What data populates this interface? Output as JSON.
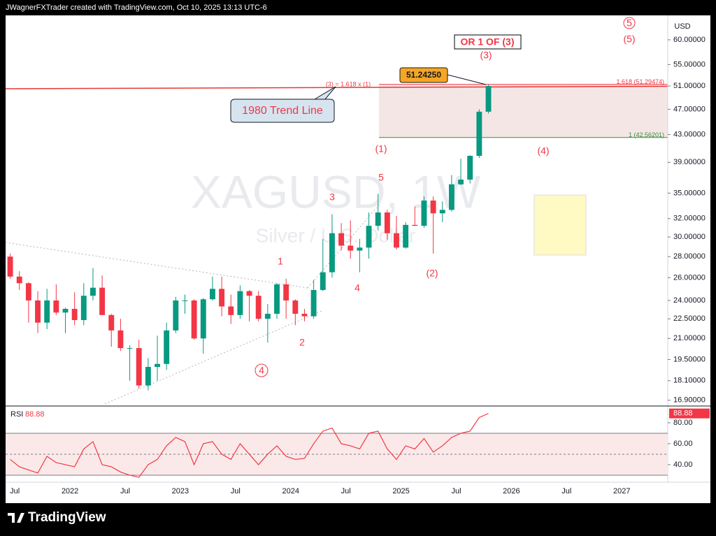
{
  "header": "JWagnerFXTrader created with TradingView.com, Oct 10, 2025 13:13 UTC-6",
  "footer": "TradingView",
  "chart_data": [
    {
      "type": "candlestick",
      "title": "XAGUSD, 1W",
      "subtitle": "Silver / U.S. Dollar",
      "y_label": "USD",
      "log_scale": true,
      "up_color": "#089981",
      "down_color": "#f23645",
      "x": [
        "2021-06",
        "2021-07",
        "2021-08",
        "2021-09",
        "2021-10",
        "2021-11",
        "2021-12",
        "2022-01",
        "2022-02",
        "2022-03",
        "2022-04",
        "2022-05",
        "2022-06",
        "2022-07",
        "2022-08",
        "2022-09",
        "2022-10",
        "2022-11",
        "2022-12",
        "2023-01",
        "2023-02",
        "2023-03",
        "2023-04",
        "2023-05",
        "2023-06",
        "2023-07",
        "2023-08",
        "2023-09",
        "2023-10",
        "2023-11",
        "2023-12",
        "2024-01",
        "2024-02",
        "2024-03",
        "2024-04",
        "2024-05",
        "2024-06",
        "2024-07",
        "2024-08",
        "2024-09",
        "2024-10",
        "2024-11",
        "2024-12",
        "2025-01",
        "2025-02",
        "2025-03",
        "2025-04",
        "2025-05",
        "2025-06",
        "2025-07",
        "2025-08",
        "2025-09",
        "2025-10"
      ],
      "ohlc": [
        [
          28.0,
          28.3,
          25.9,
          26.1
        ],
        [
          26.1,
          26.6,
          24.9,
          25.5
        ],
        [
          25.5,
          25.6,
          22.2,
          24.0
        ],
        [
          24.0,
          24.8,
          21.4,
          22.2
        ],
        [
          22.2,
          25.0,
          21.7,
          24.0
        ],
        [
          24.0,
          25.4,
          22.8,
          23.0
        ],
        [
          23.0,
          23.4,
          21.4,
          23.3
        ],
        [
          23.3,
          24.7,
          22.0,
          22.4
        ],
        [
          22.4,
          25.5,
          22.0,
          24.4
        ],
        [
          24.4,
          26.9,
          24.0,
          25.1
        ],
        [
          25.1,
          26.2,
          22.8,
          22.8
        ],
        [
          22.8,
          22.9,
          20.4,
          21.6
        ],
        [
          21.6,
          22.5,
          20.1,
          20.3
        ],
        [
          20.3,
          20.5,
          18.1,
          20.3
        ],
        [
          20.3,
          20.9,
          17.6,
          17.8
        ],
        [
          17.8,
          19.6,
          17.5,
          19.0
        ],
        [
          19.0,
          21.2,
          18.1,
          19.2
        ],
        [
          19.2,
          22.2,
          18.8,
          21.6
        ],
        [
          21.6,
          24.3,
          21.4,
          24.0
        ],
        [
          24.0,
          24.5,
          22.9,
          24.0
        ],
        [
          24.0,
          24.1,
          20.9,
          21.0
        ],
        [
          21.0,
          24.2,
          19.9,
          24.1
        ],
        [
          24.1,
          26.1,
          24.0,
          25.0
        ],
        [
          25.0,
          26.1,
          22.7,
          23.5
        ],
        [
          23.5,
          24.5,
          22.1,
          22.8
        ],
        [
          22.8,
          25.3,
          22.5,
          24.8
        ],
        [
          24.8,
          24.9,
          22.3,
          24.4
        ],
        [
          24.4,
          24.8,
          22.3,
          22.5
        ],
        [
          22.5,
          23.7,
          20.7,
          22.9
        ],
        [
          22.9,
          25.5,
          22.5,
          25.4
        ],
        [
          25.4,
          25.9,
          22.5,
          24.0
        ],
        [
          24.0,
          24.1,
          22.0,
          22.9
        ],
        [
          22.9,
          23.3,
          22.3,
          22.7
        ],
        [
          22.7,
          25.8,
          22.5,
          24.9
        ],
        [
          24.9,
          29.8,
          24.8,
          26.5
        ],
        [
          26.5,
          32.5,
          26.0,
          30.4
        ],
        [
          30.4,
          31.5,
          28.6,
          29.1
        ],
        [
          29.1,
          31.8,
          27.8,
          28.6
        ],
        [
          28.6,
          29.8,
          26.5,
          28.9
        ],
        [
          28.9,
          32.7,
          27.8,
          31.2
        ],
        [
          31.2,
          34.9,
          30.7,
          32.7
        ],
        [
          32.7,
          33.0,
          29.7,
          30.4
        ],
        [
          30.4,
          32.3,
          28.7,
          28.9
        ],
        [
          28.9,
          31.6,
          28.8,
          31.3
        ],
        [
          31.3,
          33.4,
          31.2,
          31.2
        ],
        [
          31.2,
          34.6,
          31.0,
          34.1
        ],
        [
          34.1,
          34.6,
          28.3,
          32.6
        ],
        [
          32.6,
          34.0,
          31.6,
          33.0
        ],
        [
          33.0,
          37.3,
          32.8,
          36.1
        ],
        [
          36.1,
          39.5,
          36.0,
          36.7
        ],
        [
          36.7,
          40.0,
          36.2,
          39.9
        ],
        [
          39.9,
          47.0,
          39.6,
          46.6
        ],
        [
          46.6,
          51.2425,
          46.3,
          51.0
        ]
      ],
      "xlim": [
        "2021-06",
        "2027-06"
      ],
      "xticks": [
        {
          "value": "2021-07",
          "label": "Jul"
        },
        {
          "value": "2022-01",
          "label": "2022"
        },
        {
          "value": "2022-07",
          "label": "Jul"
        },
        {
          "value": "2023-01",
          "label": "2023"
        },
        {
          "value": "2023-07",
          "label": "Jul"
        },
        {
          "value": "2024-01",
          "label": "2024"
        },
        {
          "value": "2024-07",
          "label": "Jul"
        },
        {
          "value": "2025-01",
          "label": "2025"
        },
        {
          "value": "2025-07",
          "label": "Jul"
        },
        {
          "value": "2026-01",
          "label": "2026"
        },
        {
          "value": "2026-07",
          "label": "Jul"
        },
        {
          "value": "2027-01",
          "label": "2027"
        }
      ],
      "ylim": [
        16.6,
        64.9
      ],
      "yticks": [
        {
          "value": 60,
          "label": "60.00000"
        },
        {
          "value": 55,
          "label": "55.00000"
        },
        {
          "value": 51,
          "label": "51.00000"
        },
        {
          "value": 47,
          "label": "47.00000"
        },
        {
          "value": 43,
          "label": "43.00000"
        },
        {
          "value": 39,
          "label": "39.00000"
        },
        {
          "value": 35,
          "label": "35.00000"
        },
        {
          "value": 32,
          "label": "32.00000"
        },
        {
          "value": 30,
          "label": "30.00000"
        },
        {
          "value": 28,
          "label": "28.00000"
        },
        {
          "value": 26,
          "label": "26.00000"
        },
        {
          "value": 24,
          "label": "24.00000"
        },
        {
          "value": 22.5,
          "label": "22.50000"
        },
        {
          "value": 21,
          "label": "21.00000"
        },
        {
          "value": 19.5,
          "label": "19.50000"
        },
        {
          "value": 18.1,
          "label": "18.10000"
        },
        {
          "value": 16.9,
          "label": "16.90000"
        }
      ],
      "levels": [
        {
          "label": "1.618 (51.29474)",
          "value": 51.29474,
          "color": "#f23645"
        },
        {
          "label": "1 (42.56201)",
          "value": 42.56201,
          "color": "#388e3c"
        }
      ],
      "annotations": [
        "1",
        "2",
        "3",
        "4",
        "5",
        "(1)",
        "(2)",
        "(3)",
        "(4)",
        "(5)",
        "4",
        "5",
        "OR 1 OF (3)",
        "1980 Trend Line",
        "(3) = 1.618 x (1)",
        "51.24250"
      ]
    },
    {
      "type": "line",
      "title": "RSI",
      "color": "#f23645",
      "x": [
        "2021-06",
        "2021-07",
        "2021-08",
        "2021-09",
        "2021-10",
        "2021-11",
        "2021-12",
        "2022-01",
        "2022-02",
        "2022-03",
        "2022-04",
        "2022-05",
        "2022-06",
        "2022-07",
        "2022-08",
        "2022-09",
        "2022-10",
        "2022-11",
        "2022-12",
        "2023-01",
        "2023-02",
        "2023-03",
        "2023-04",
        "2023-05",
        "2023-06",
        "2023-07",
        "2023-08",
        "2023-09",
        "2023-10",
        "2023-11",
        "2023-12",
        "2024-01",
        "2024-02",
        "2024-03",
        "2024-04",
        "2024-05",
        "2024-06",
        "2024-07",
        "2024-08",
        "2024-09",
        "2024-10",
        "2024-11",
        "2024-12",
        "2025-01",
        "2025-02",
        "2025-03",
        "2025-04",
        "2025-05",
        "2025-06",
        "2025-07",
        "2025-08",
        "2025-09",
        "2025-10"
      ],
      "values": [
        45,
        38,
        35,
        32,
        48,
        42,
        40,
        38,
        55,
        62,
        40,
        38,
        33,
        30,
        28,
        40,
        45,
        58,
        66,
        62,
        40,
        60,
        62,
        50,
        45,
        60,
        50,
        40,
        50,
        58,
        48,
        45,
        46,
        60,
        72,
        75,
        60,
        58,
        55,
        70,
        72,
        55,
        45,
        58,
        55,
        65,
        52,
        58,
        66,
        70,
        72,
        85,
        88.88
      ],
      "ylim": [
        27.3,
        91.3
      ],
      "yticks": [
        {
          "value": 80,
          "label": "80.00"
        },
        {
          "value": 60,
          "label": "60.00"
        },
        {
          "value": 40,
          "label": "40.00"
        }
      ],
      "levels": [
        70,
        50,
        30
      ]
    }
  ]
}
